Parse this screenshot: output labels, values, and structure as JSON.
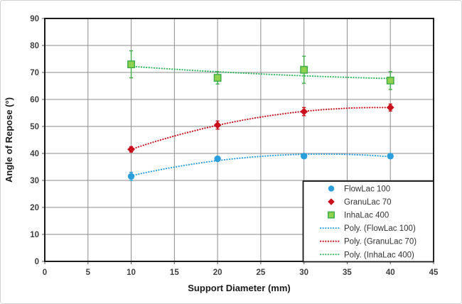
{
  "figure": {
    "background": "#ffffff",
    "outer_border_color": "#d2d2d2",
    "plot_border_color": "#1a1a1a",
    "gridline_color": "#8c8c8c",
    "tick_label_color": "#404040",
    "legend_border_color": "#1a1a1a"
  },
  "chart_data": {
    "type": "scatter",
    "title": "",
    "xlabel": "Support Diameter (mm)",
    "ylabel": "Angle of Repose (°)",
    "xlim": [
      0,
      45
    ],
    "ylim": [
      0,
      90
    ],
    "xticks": [
      0,
      5,
      10,
      15,
      20,
      25,
      30,
      35,
      40,
      45
    ],
    "yticks": [
      0,
      10,
      20,
      30,
      40,
      50,
      60,
      70,
      80,
      90
    ],
    "grid": true,
    "x": [
      10,
      20,
      30,
      40
    ],
    "series": [
      {
        "name": "FlowLac 100",
        "marker": "circle",
        "color": "#2b9fdb",
        "values": [
          31.5,
          38,
          39,
          39
        ],
        "errors": [
          1.5,
          0.8,
          0.5,
          0.5
        ]
      },
      {
        "name": "GranuLac 70",
        "marker": "diamond",
        "color": "#c9111e",
        "values": [
          41.5,
          50.5,
          55.5,
          57
        ],
        "errors": [
          1.0,
          1.5,
          1.5,
          1.3
        ]
      },
      {
        "name": "InhaLac 400",
        "marker": "square",
        "color": "#3fae49",
        "fill": "#90d14f",
        "values": [
          73,
          68,
          71,
          67
        ],
        "errors": [
          5.0,
          2.3,
          5.0,
          3.3
        ]
      }
    ],
    "trendlines": [
      {
        "name": "Poly. (FlowLac 100)",
        "color": "#2b9fdb",
        "coeffs": [
          22.875,
          1.0475,
          -0.01625
        ],
        "x_range": [
          10,
          40
        ]
      },
      {
        "name": "Poly. (GranuLac 70)",
        "color": "#c9111e",
        "coeffs": [
          28.875,
          1.4525,
          -0.01875
        ],
        "x_range": [
          10,
          40
        ]
      },
      {
        "name": "Poly. (InhaLac 400)",
        "color": "#2eb45a",
        "coeffs": [
          74.75,
          -0.275,
          0.0025
        ],
        "x_range": [
          10,
          40
        ]
      }
    ],
    "legend": {
      "position": "bottom-right",
      "entries": [
        "FlowLac 100",
        "GranuLac 70",
        "InhaLac 400",
        "Poly. (FlowLac 100)",
        "Poly. (GranuLac 70)",
        "Poly. (InhaLac 400)"
      ]
    }
  }
}
